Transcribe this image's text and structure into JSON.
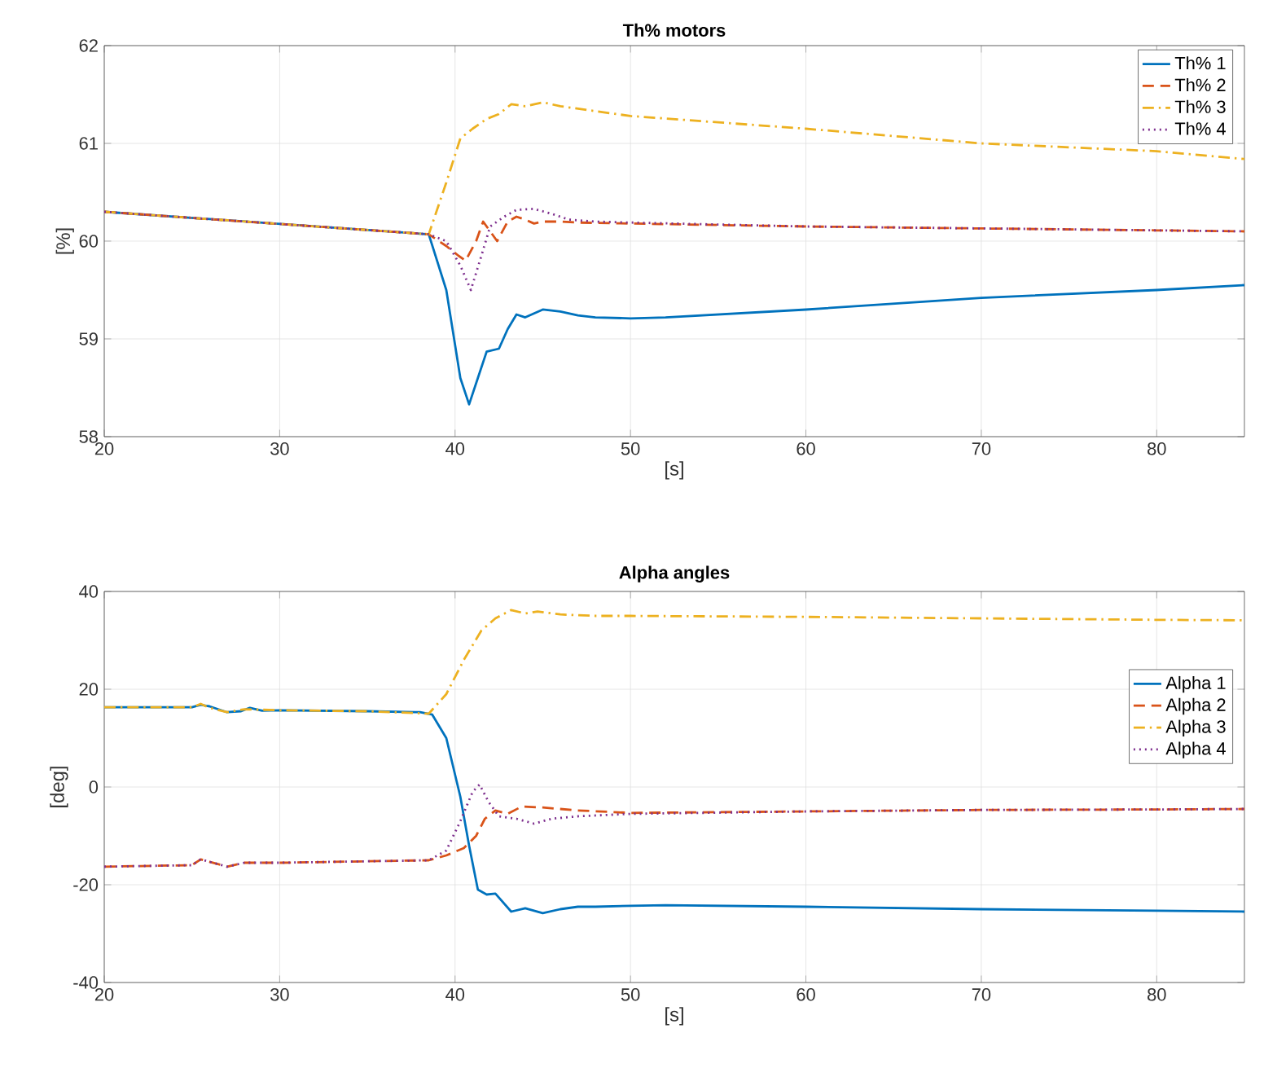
{
  "chart_data": [
    {
      "type": "line",
      "title": "Th% motors",
      "xlabel": "[s]",
      "ylabel": "[%]",
      "xlim": [
        20,
        85
      ],
      "xticks": [
        20,
        30,
        40,
        50,
        60,
        70,
        80
      ],
      "ylim": [
        58,
        62
      ],
      "yticks": [
        58,
        59,
        60,
        61,
        62
      ],
      "grid": true,
      "legend": "top right",
      "series": [
        {
          "name": "Th% 1",
          "color": "#0072bd",
          "line_style": "solid",
          "x": [
            20,
            38.5,
            39.5,
            40.3,
            40.8,
            41.3,
            41.8,
            42.5,
            43,
            43.5,
            44,
            45,
            46,
            47,
            48,
            50,
            52,
            60,
            70,
            80,
            85
          ],
          "values": [
            60.3,
            60.07,
            59.5,
            58.6,
            58.33,
            58.6,
            58.87,
            58.9,
            59.1,
            59.25,
            59.22,
            59.3,
            59.28,
            59.24,
            59.22,
            59.21,
            59.22,
            59.3,
            59.42,
            59.5,
            59.55
          ]
        },
        {
          "name": "Th% 2",
          "color": "#d95319",
          "line_style": "dashed",
          "x": [
            20,
            38.5,
            39.5,
            40.2,
            40.6,
            41.2,
            41.6,
            42,
            42.4,
            43,
            43.5,
            44,
            44.5,
            45,
            46,
            47,
            50,
            60,
            70,
            80,
            85
          ],
          "values": [
            60.3,
            60.07,
            59.95,
            59.85,
            59.8,
            60.0,
            60.2,
            60.1,
            60.0,
            60.2,
            60.25,
            60.22,
            60.18,
            60.2,
            60.2,
            60.19,
            60.18,
            60.15,
            60.13,
            60.11,
            60.1
          ]
        },
        {
          "name": "Th% 3",
          "color": "#edb120",
          "line_style": "dashdot",
          "x": [
            20,
            38.5,
            39.5,
            40.3,
            41,
            41.8,
            42.5,
            43.2,
            44,
            45,
            46,
            48,
            50,
            60,
            70,
            80,
            85
          ],
          "values": [
            60.3,
            60.07,
            60.6,
            61.05,
            61.15,
            61.25,
            61.3,
            61.4,
            61.38,
            61.42,
            61.38,
            61.33,
            61.28,
            61.15,
            61.0,
            60.92,
            60.84
          ]
        },
        {
          "name": "Th% 4",
          "color": "#7e2f8e",
          "line_style": "dotted",
          "x": [
            20,
            38.5,
            39.5,
            40.3,
            40.9,
            41.5,
            42,
            42.8,
            43.5,
            44.5,
            45.5,
            46.5,
            48,
            50,
            60,
            70,
            80,
            85
          ],
          "values": [
            60.3,
            60.07,
            60.0,
            59.75,
            59.5,
            59.85,
            60.15,
            60.25,
            60.32,
            60.33,
            60.28,
            60.22,
            60.2,
            60.19,
            60.15,
            60.13,
            60.11,
            60.1
          ]
        }
      ]
    },
    {
      "type": "line",
      "title": "Alpha angles",
      "xlabel": "[s]",
      "ylabel": "[deg]",
      "xlim": [
        20,
        85
      ],
      "xticks": [
        20,
        30,
        40,
        50,
        60,
        70,
        80
      ],
      "ylim": [
        -40,
        40
      ],
      "yticks": [
        -40,
        -20,
        0,
        20,
        40
      ],
      "grid": true,
      "legend": "right",
      "series": [
        {
          "name": "Alpha 1",
          "color": "#0072bd",
          "line_style": "solid",
          "x": [
            20,
            25,
            25.5,
            26,
            27,
            27.8,
            28.3,
            29,
            30,
            35,
            38,
            38.7,
            39.5,
            40.3,
            40.8,
            41.3,
            41.8,
            42.3,
            43.2,
            44,
            45,
            46,
            47,
            48,
            50,
            52,
            60,
            70,
            80,
            85
          ],
          "values": [
            16.3,
            16.3,
            16.8,
            16.5,
            15.3,
            15.5,
            16.2,
            15.6,
            15.7,
            15.5,
            15.3,
            14.8,
            10,
            -2,
            -12,
            -21,
            -22,
            -21.8,
            -25.5,
            -24.8,
            -25.8,
            -25,
            -24.5,
            -24.5,
            -24.3,
            -24.2,
            -24.5,
            -25,
            -25.3,
            -25.5
          ]
        },
        {
          "name": "Alpha 2",
          "color": "#d95319",
          "line_style": "dashed",
          "x": [
            20,
            25,
            25.5,
            26,
            27,
            28,
            30,
            35,
            38.5,
            39.5,
            40.5,
            41.2,
            41.7,
            42.3,
            43,
            43.8,
            45,
            46,
            47,
            50,
            60,
            70,
            80,
            85
          ],
          "values": [
            -16.3,
            -16,
            -14.8,
            -15.3,
            -16.3,
            -15.5,
            -15.5,
            -15.2,
            -15,
            -14,
            -12.5,
            -10,
            -6.5,
            -4.8,
            -5.5,
            -4,
            -4.2,
            -4.5,
            -4.8,
            -5.3,
            -5,
            -4.7,
            -4.6,
            -4.5
          ]
        },
        {
          "name": "Alpha 3",
          "color": "#edb120",
          "line_style": "dashdot",
          "x": [
            20,
            25,
            25.5,
            26,
            27,
            28,
            30,
            35,
            38.5,
            39.5,
            40.5,
            41.5,
            42.3,
            43.2,
            44,
            44.7,
            46,
            48,
            50,
            60,
            70,
            80,
            85
          ],
          "values": [
            16.3,
            16.3,
            17,
            16.2,
            15.3,
            15.9,
            15.7,
            15.5,
            15,
            19,
            26,
            32,
            34.5,
            36.2,
            35.5,
            35.9,
            35.3,
            35,
            35,
            34.8,
            34.5,
            34.2,
            34.1
          ]
        },
        {
          "name": "Alpha 4",
          "color": "#7e2f8e",
          "line_style": "dotted",
          "x": [
            20,
            25,
            25.5,
            26,
            27,
            28,
            30,
            35,
            38.5,
            39.5,
            40.3,
            41,
            41.4,
            41.9,
            42.5,
            43.5,
            44.5,
            45.5,
            47,
            50,
            60,
            70,
            80,
            85
          ],
          "values": [
            -16.3,
            -16,
            -14.8,
            -15.3,
            -16.3,
            -15.5,
            -15.5,
            -15.2,
            -15,
            -13,
            -7,
            -1,
            0.5,
            -3,
            -6,
            -6.5,
            -7.5,
            -6.5,
            -6,
            -5.5,
            -5,
            -4.7,
            -4.6,
            -4.5
          ]
        }
      ]
    }
  ]
}
